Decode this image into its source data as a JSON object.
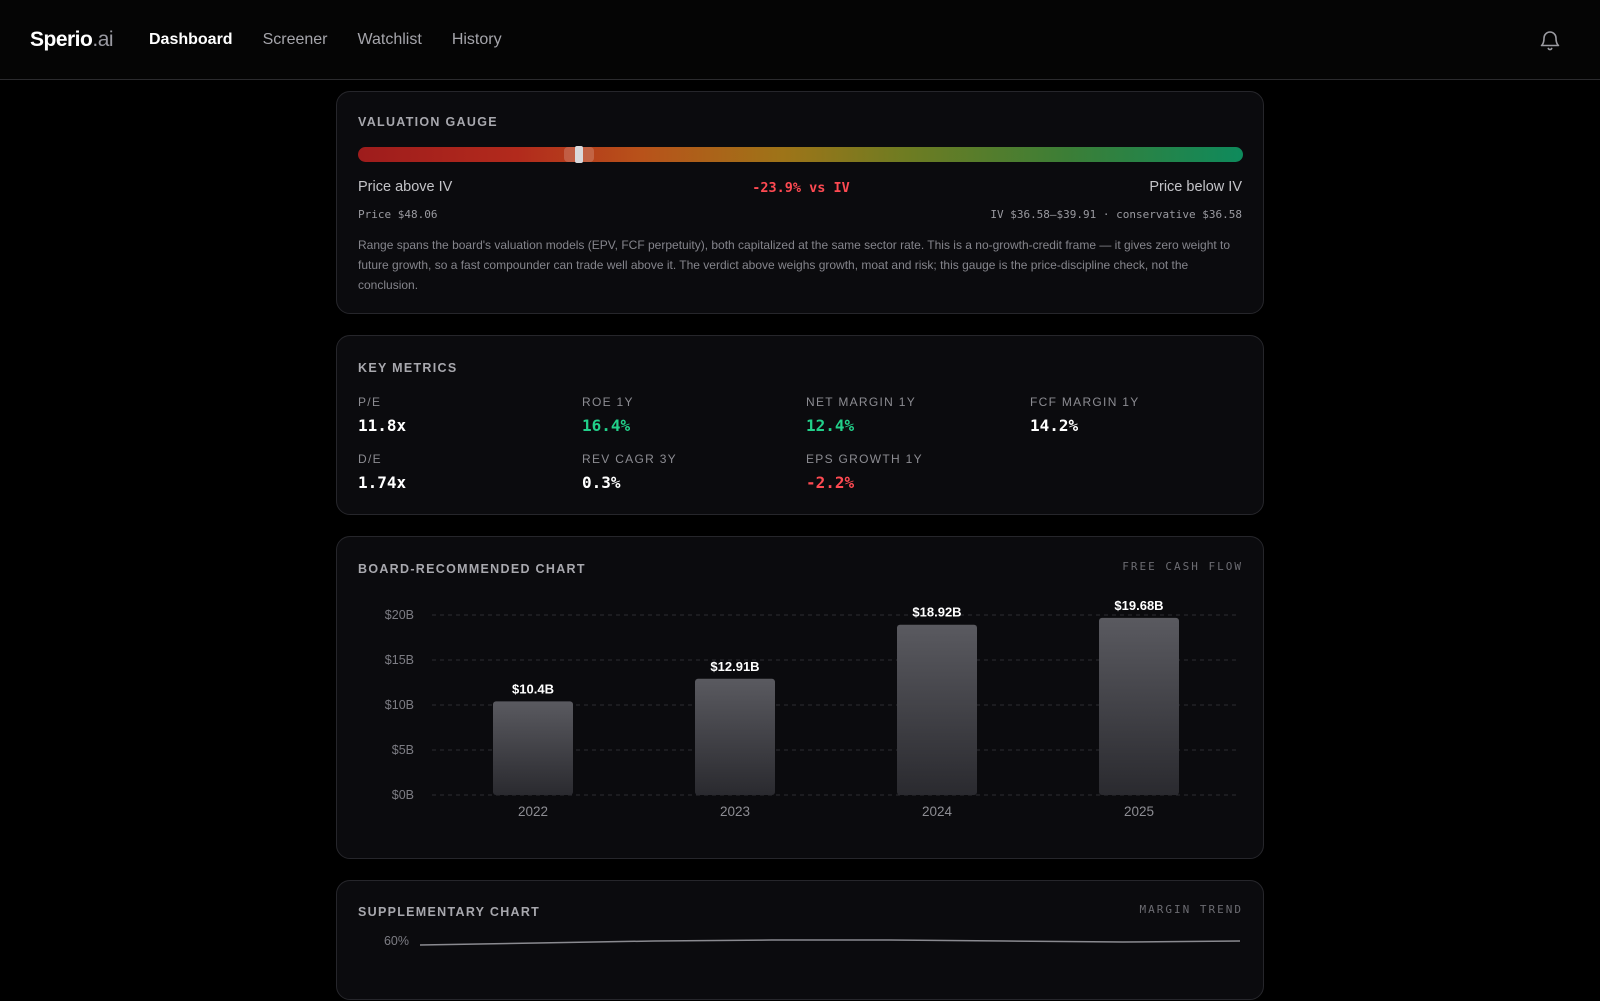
{
  "app": {
    "logo_main": "Sperio",
    "logo_ext": ".ai",
    "nav": [
      {
        "label": "Dashboard",
        "active": true
      },
      {
        "label": "Screener",
        "active": false
      },
      {
        "label": "Watchlist",
        "active": false
      },
      {
        "label": "History",
        "active": false
      }
    ],
    "notification_icon": "bell-icon"
  },
  "valuation_gauge": {
    "title": "VALUATION GAUGE",
    "left_label": "Price above IV",
    "right_label": "Price below IV",
    "delta_label": "-23.9% vs IV",
    "price_text": "Price $48.06",
    "iv_text": "IV $36.58–$39.91 · conservative $36.58",
    "marker_fraction": 0.25,
    "note": "Range spans the board's valuation models (EPV, FCF perpetuity), both capitalized at the same sector rate. This is a no-growth-credit frame — it gives zero weight to future growth, so a fast compounder can trade well above it. The verdict above weighs growth, moat and risk; this gauge is the price-discipline check, not the conclusion.",
    "colors": {
      "negative": "#ff4a52",
      "bar_start": "#9e1c1c",
      "bar_end": "#0e8a5c"
    }
  },
  "key_metrics": {
    "title": "KEY METRICS",
    "items": [
      {
        "label": "P/E",
        "value": "11.8x",
        "tone": "neutral"
      },
      {
        "label": "ROE 1Y",
        "value": "16.4%",
        "tone": "pos"
      },
      {
        "label": "NET MARGIN 1Y",
        "value": "12.4%",
        "tone": "pos"
      },
      {
        "label": "FCF MARGIN 1Y",
        "value": "14.2%",
        "tone": "neutral"
      },
      {
        "label": "D/E",
        "value": "1.74x",
        "tone": "neutral"
      },
      {
        "label": "REV CAGR 3Y",
        "value": "0.3%",
        "tone": "neutral"
      },
      {
        "label": "EPS GROWTH 1Y",
        "value": "-2.2%",
        "tone": "neg"
      }
    ]
  },
  "board_chart": {
    "title": "BOARD-RECOMMENDED CHART",
    "tag": "FREE CASH FLOW"
  },
  "supplementary_chart": {
    "title": "SUPPLEMENTARY CHART",
    "tag": "MARGIN TREND",
    "visible_tick": "60%"
  },
  "chart_data": [
    {
      "type": "bar",
      "title": "BOARD-RECOMMENDED CHART",
      "subtitle": "FREE CASH FLOW",
      "categories": [
        "2022",
        "2023",
        "2024",
        "2025"
      ],
      "values": [
        10.4,
        12.91,
        18.92,
        19.68
      ],
      "value_labels": [
        "$10.4B",
        "$12.91B",
        "$18.92B",
        "$19.68B"
      ],
      "yticks": [
        0,
        5,
        10,
        15,
        20
      ],
      "ytick_labels": [
        "$0B",
        "$5B",
        "$10B",
        "$15B",
        "$20B"
      ],
      "ylim": [
        0,
        20
      ],
      "grid": true,
      "bar_color": "#4e4e54"
    },
    {
      "type": "line",
      "title": "SUPPLEMENTARY CHART",
      "subtitle": "MARGIN TREND",
      "visible_ytick_labels": [
        "60%"
      ],
      "series": [
        {
          "values": [
            59,
            60,
            61,
            61.5,
            61.5,
            61,
            60.5,
            61
          ]
        }
      ],
      "line_color": "#8a8a90"
    }
  ]
}
